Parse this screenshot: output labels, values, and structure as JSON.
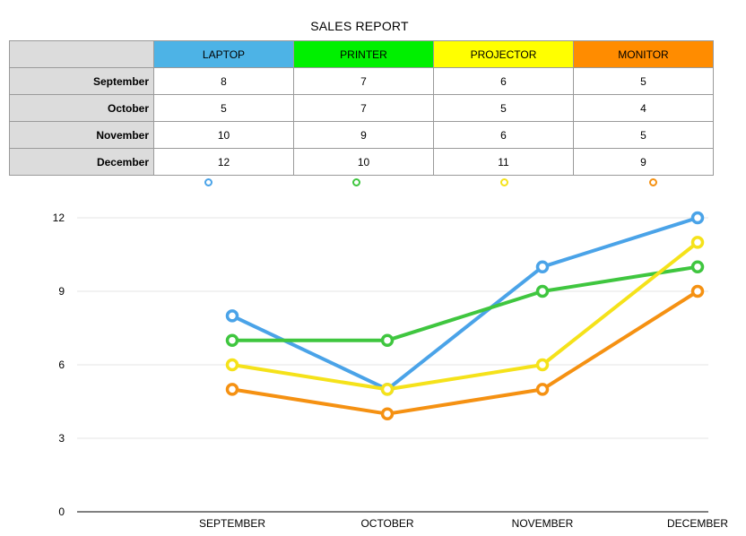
{
  "chart_data": {
    "type": "line",
    "title": "SALES REPORT",
    "categories": [
      "September",
      "October",
      "November",
      "December"
    ],
    "x_tick_labels": [
      "SEPTEMBER",
      "OCTOBER",
      "NOVEMBER",
      "DECEMBER"
    ],
    "series": [
      {
        "name": "LAPTOP",
        "color": "#4aa3e8",
        "values": [
          8,
          5,
          10,
          12
        ]
      },
      {
        "name": "PRINTER",
        "color": "#3fc63f",
        "values": [
          7,
          7,
          9,
          10
        ]
      },
      {
        "name": "PROJECTOR",
        "color": "#f5e21a",
        "values": [
          6,
          5,
          6,
          11
        ]
      },
      {
        "name": "MONITOR",
        "color": "#f59112",
        "values": [
          5,
          4,
          5,
          9
        ]
      }
    ],
    "header_colors": [
      "#4db3e6",
      "#00f000",
      "#ffff00",
      "#ff8c00"
    ],
    "y_ticks": [
      0,
      3,
      6,
      9,
      12
    ],
    "ylim": [
      0,
      13
    ],
    "grid": true,
    "legend_position": "below-table"
  }
}
